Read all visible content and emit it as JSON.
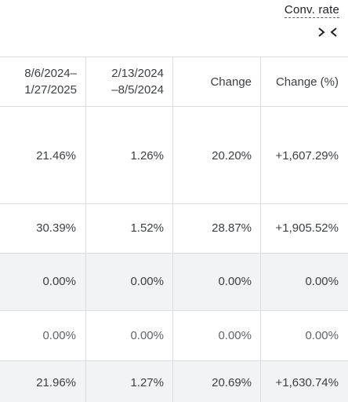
{
  "metric": {
    "label": "Conv. rate"
  },
  "columns": [
    {
      "label": "8/6/2024–\n1/27/2025"
    },
    {
      "label": "2/13/2024\n–8/5/2024"
    },
    {
      "label": "Change"
    },
    {
      "label": "Change (%)"
    }
  ],
  "rows": [
    {
      "cells": [
        "21.46%",
        "1.26%",
        "20.20%",
        "+1,607.29%"
      ]
    },
    {
      "cells": [
        "30.39%",
        "1.52%",
        "28.87%",
        "+1,905.52%"
      ]
    },
    {
      "cells": [
        "0.00%",
        "0.00%",
        "0.00%",
        "0.00%"
      ]
    },
    {
      "cells": [
        "0.00%",
        "0.00%",
        "0.00%",
        "0.00%"
      ]
    },
    {
      "cells": [
        "21.96%",
        "1.27%",
        "20.69%",
        "+1,630.74%"
      ]
    }
  ]
}
